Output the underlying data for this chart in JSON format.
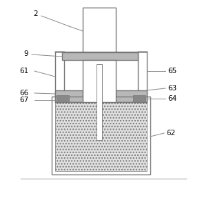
{
  "figsize": [
    2.93,
    3.03
  ],
  "dpi": 100,
  "lc": "#777777",
  "lw": 1.0,
  "bg": "white",
  "hatch_bg": "#e0e0e0",
  "gray_fill": "#b8b8b8",
  "dark_fill": "#888888",
  "white": "white",
  "label_fs": 7.5,
  "leader_color": "#888888"
}
